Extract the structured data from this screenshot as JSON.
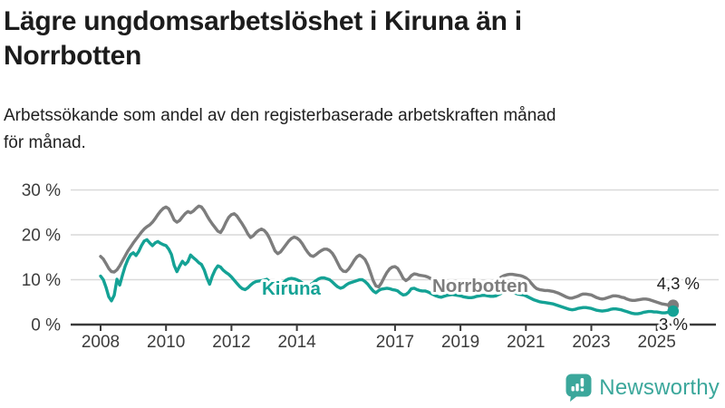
{
  "header": {
    "title_lines": [
      "Lägre ungdomsarbetslöshet i Kiruna än i",
      "Norrbotten"
    ],
    "subtitle_lines": [
      "Arbetssökande som andel av den registerbaserade arbetskraften månad",
      "för månad."
    ]
  },
  "footer": {
    "brand": "Newsworthy",
    "brand_color": "#3ba79b"
  },
  "colors": {
    "kiruna": "#14a295",
    "norrbotten": "#7d7d7d",
    "axis": "#3a3a3a",
    "gridline": "#d9d9d9",
    "tick_label": "#3c3c3c",
    "end_label_text": "#1f1f1f",
    "background": "#ffffff"
  },
  "chart_data": {
    "type": "line",
    "title": "Lägre ungdomsarbetslöshet i Kiruna än i Norrbotten",
    "subtitle": "Arbetssökande som andel av den registerbaserade arbetskraften månad för månad.",
    "x_unit": "month",
    "x_start_year": 2008,
    "x_end_year_fraction": 2025.5,
    "x_ticks": [
      2008,
      2010,
      2012,
      2014,
      2017,
      2019,
      2021,
      2023,
      2025
    ],
    "x_tick_labels": [
      "2008",
      "2010",
      "2012",
      "2014",
      "2017",
      "2019",
      "2021",
      "2023",
      "2025"
    ],
    "y_ticks": [
      0,
      10,
      20,
      30
    ],
    "y_tick_labels": [
      "0 %",
      "10 %",
      "20 %",
      "30 %"
    ],
    "ylim": [
      0,
      32
    ],
    "grid": "horizontal",
    "legend_position": "inline-labels",
    "series": [
      {
        "name": "Norrbotten",
        "color": "#7d7d7d",
        "end_value": 4.3,
        "end_label": "4,3 %",
        "values": [
          15.2,
          14.6,
          13.6,
          12.5,
          11.8,
          11.7,
          12.2,
          13.1,
          14.2,
          15.3,
          16.4,
          17.3,
          18.2,
          19.0,
          19.8,
          20.6,
          21.3,
          21.8,
          22.2,
          22.8,
          23.6,
          24.5,
          25.3,
          25.9,
          26.2,
          25.8,
          24.6,
          23.3,
          22.8,
          23.2,
          24.0,
          24.7,
          25.2,
          24.9,
          25.3,
          25.9,
          26.4,
          26.2,
          25.4,
          24.3,
          23.3,
          22.4,
          21.6,
          20.8,
          20.5,
          21.5,
          22.8,
          23.9,
          24.5,
          24.7,
          24.2,
          23.3,
          22.4,
          21.4,
          20.2,
          19.4,
          19.8,
          20.5,
          21.0,
          21.3,
          21.0,
          20.3,
          19.2,
          17.8,
          16.4,
          15.8,
          16.2,
          17.0,
          17.8,
          18.6,
          19.2,
          19.5,
          19.3,
          18.8,
          18.0,
          17.0,
          16.1,
          15.4,
          15.2,
          15.6,
          16.1,
          16.5,
          16.8,
          16.8,
          16.5,
          15.9,
          14.9,
          13.7,
          12.5,
          11.9,
          11.8,
          12.4,
          13.3,
          14.3,
          15.1,
          15.5,
          15.1,
          14.5,
          13.3,
          11.6,
          9.8,
          8.6,
          8.4,
          9.3,
          10.5,
          11.6,
          12.4,
          12.8,
          12.9,
          12.5,
          11.5,
          10.3,
          9.8,
          10.2,
          10.9,
          11.3,
          11.2,
          11.0,
          10.9,
          10.8,
          10.6,
          10.3,
          9.9,
          9.5,
          9.1,
          8.8,
          8.7,
          8.9,
          9.1,
          9.3,
          9.4,
          9.4,
          9.3,
          9.1,
          8.9,
          8.7,
          8.5,
          8.5,
          8.6,
          8.8,
          8.9,
          9.0,
          9.1,
          9.1,
          9.3,
          9.6,
          10.1,
          10.6,
          10.9,
          11.1,
          11.2,
          11.2,
          11.1,
          11.0,
          10.9,
          10.7,
          10.4,
          9.9,
          9.2,
          8.5,
          8.0,
          7.8,
          7.7,
          7.6,
          7.6,
          7.5,
          7.4,
          7.2,
          7.0,
          6.7,
          6.4,
          6.1,
          5.9,
          5.9,
          6.1,
          6.3,
          6.6,
          6.8,
          6.8,
          6.7,
          6.6,
          6.3,
          6.0,
          5.8,
          5.7,
          5.8,
          6.0,
          6.2,
          6.4,
          6.4,
          6.3,
          6.1,
          6.0,
          5.7,
          5.5,
          5.4,
          5.4,
          5.5,
          5.6,
          5.7,
          5.7,
          5.6,
          5.4,
          5.2,
          5.0,
          4.8,
          4.6,
          4.5,
          4.4,
          4.3,
          4.3
        ]
      },
      {
        "name": "Kiruna",
        "color": "#14a295",
        "end_value": 3.0,
        "end_label": "3 %",
        "values": [
          10.8,
          10.0,
          8.3,
          6.2,
          5.3,
          6.5,
          10.1,
          8.8,
          11.0,
          13.0,
          14.5,
          15.6,
          16.0,
          15.4,
          16.3,
          17.6,
          18.6,
          18.9,
          18.2,
          17.6,
          18.2,
          18.5,
          18.1,
          17.8,
          17.6,
          16.8,
          15.6,
          13.2,
          11.8,
          13.0,
          14.1,
          13.4,
          14.0,
          15.5,
          14.9,
          14.4,
          13.8,
          13.4,
          12.2,
          10.4,
          9.0,
          10.8,
          12.2,
          13.1,
          12.8,
          12.1,
          11.6,
          11.2,
          10.6,
          9.9,
          9.2,
          8.5,
          8.0,
          7.8,
          8.2,
          8.8,
          9.3,
          9.6,
          9.7,
          9.8,
          9.9,
          10.1,
          9.6,
          9.0,
          8.5,
          8.3,
          8.7,
          9.3,
          9.9,
          10.2,
          10.3,
          10.2,
          10.0,
          9.7,
          9.3,
          8.9,
          8.7,
          8.9,
          9.3,
          9.8,
          10.2,
          10.4,
          10.4,
          10.2,
          10.0,
          9.5,
          8.9,
          8.4,
          8.1,
          8.3,
          8.8,
          9.2,
          9.4,
          9.6,
          9.8,
          10.0,
          10.0,
          9.6,
          9.0,
          8.2,
          7.5,
          7.1,
          7.6,
          7.9,
          8.0,
          8.1,
          8.0,
          7.8,
          7.7,
          7.5,
          7.0,
          6.6,
          6.7,
          7.2,
          8.0,
          8.1,
          7.8,
          7.6,
          7.5,
          7.5,
          7.3,
          7.0,
          6.7,
          6.4,
          6.2,
          6.1,
          6.3,
          6.5,
          6.6,
          6.7,
          6.6,
          6.5,
          6.4,
          6.2,
          6.1,
          6.0,
          6.0,
          6.1,
          6.3,
          6.4,
          6.5,
          6.5,
          6.4,
          6.3,
          6.3,
          6.4,
          6.7,
          7.0,
          7.2,
          7.3,
          7.3,
          7.2,
          7.0,
          6.8,
          6.7,
          6.6,
          6.4,
          6.1,
          5.8,
          5.5,
          5.3,
          5.1,
          5.0,
          4.9,
          4.8,
          4.7,
          4.6,
          4.4,
          4.2,
          4.0,
          3.8,
          3.6,
          3.4,
          3.3,
          3.4,
          3.6,
          3.7,
          3.8,
          3.8,
          3.7,
          3.6,
          3.4,
          3.2,
          3.1,
          3.0,
          3.1,
          3.2,
          3.4,
          3.5,
          3.5,
          3.4,
          3.3,
          3.1,
          2.9,
          2.7,
          2.5,
          2.4,
          2.4,
          2.5,
          2.7,
          2.8,
          2.9,
          2.9,
          2.8,
          2.8,
          2.7,
          2.6,
          2.6,
          2.7,
          2.9,
          3.0
        ]
      }
    ],
    "inline_labels": [
      {
        "text": "Kiruna",
        "series": "Kiruna"
      },
      {
        "text": "Norrbotten",
        "series": "Norrbotten"
      }
    ]
  }
}
